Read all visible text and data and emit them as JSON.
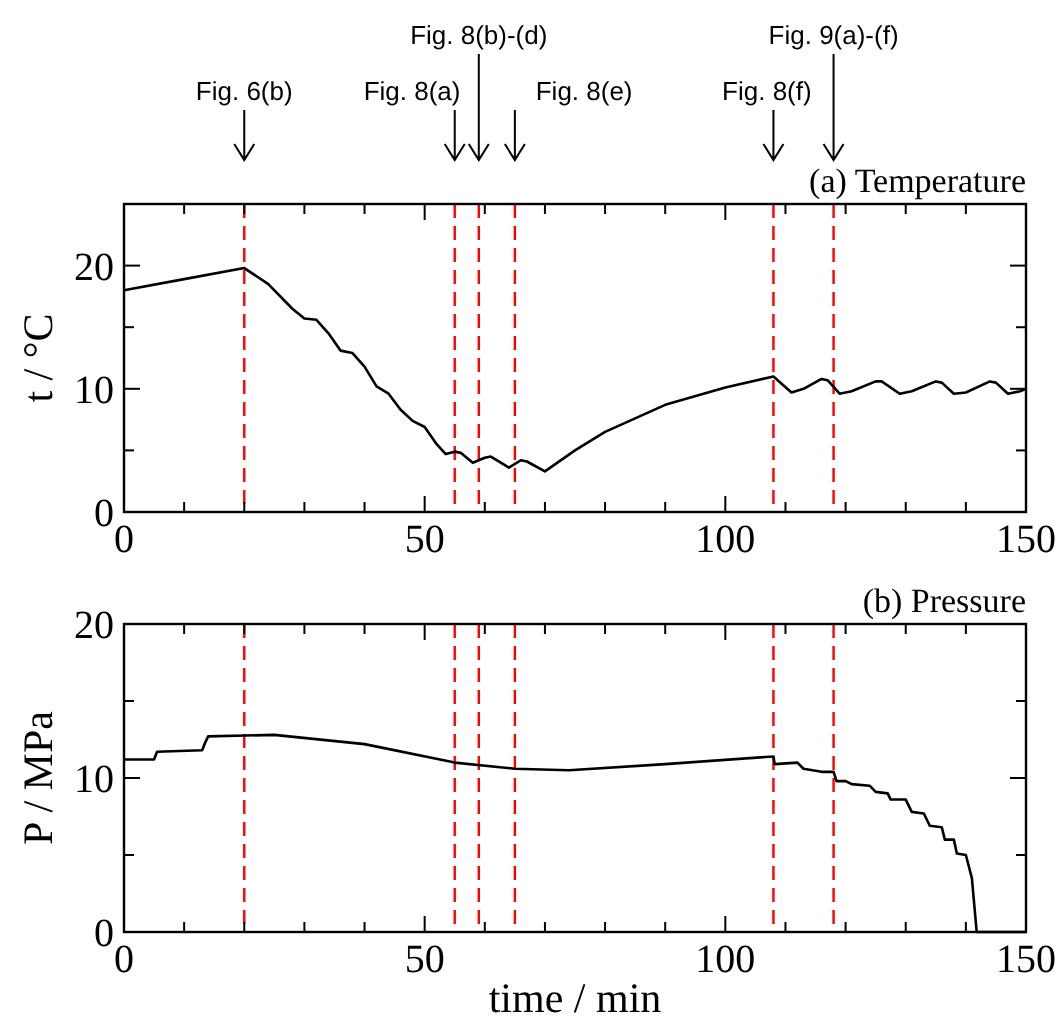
{
  "chart_data": [
    {
      "type": "line",
      "title": "(a) Temperature",
      "ylabel": "t / °C",
      "xlim": [
        0,
        150
      ],
      "ylim": [
        0,
        25
      ],
      "xticks": [
        0,
        {
          "value": 10,
          "label": null
        },
        {
          "value": 20,
          "label": null
        },
        {
          "value": 30,
          "label": null
        },
        {
          "value": 40,
          "label": null
        },
        50,
        {
          "value": 60,
          "label": null
        },
        {
          "value": 70,
          "label": null
        },
        {
          "value": 80,
          "label": null
        },
        {
          "value": 90,
          "label": null
        },
        100,
        {
          "value": 110,
          "label": null
        },
        {
          "value": 120,
          "label": null
        },
        {
          "value": 130,
          "label": null
        },
        {
          "value": 140,
          "label": null
        },
        150
      ],
      "yticks": [
        0,
        {
          "value": 5,
          "label": null
        },
        10,
        {
          "value": 15,
          "label": null
        },
        20,
        {
          "value": 25,
          "label": null
        }
      ],
      "grid": false,
      "line_style": "solid",
      "series": [
        {
          "color": "#000000",
          "x": [
            0,
            10,
            20,
            24,
            28,
            30,
            32,
            34,
            36,
            38,
            40,
            42,
            44,
            46,
            48,
            50,
            52,
            53.5,
            55,
            56,
            58,
            60,
            61,
            63,
            64,
            66,
            67,
            70,
            75,
            80,
            90,
            100,
            108,
            111,
            113,
            116,
            117,
            119,
            121,
            125,
            126,
            129,
            131,
            135,
            136,
            138,
            140,
            144,
            145,
            147,
            149,
            150
          ],
          "values": [
            18,
            18.9,
            19.8,
            18.5,
            16.5,
            15.7,
            15.6,
            14.5,
            13.1,
            12.9,
            11.8,
            10.2,
            9.6,
            8.3,
            7.4,
            6.9,
            5.5,
            4.7,
            4.9,
            4.8,
            4.0,
            4.4,
            4.5,
            3.9,
            3.6,
            4.2,
            4.1,
            3.3,
            5,
            6.5,
            8.7,
            10.1,
            11,
            9.7,
            10,
            10.8,
            10.7,
            9.6,
            9.8,
            10.6,
            10.6,
            9.6,
            9.8,
            10.6,
            10.5,
            9.6,
            9.7,
            10.6,
            10.5,
            9.6,
            9.8,
            10
          ]
        }
      ],
      "annotations": [
        "Fig. 6(b)",
        "Fig. 8(a)",
        "Fig. 8(b)-(d)",
        "Fig. 8(e)",
        "Fig. 8(f)",
        "Fig. 9(a)-(f)"
      ],
      "ref_lines": [
        {
          "axis": "x",
          "value": 20,
          "color": "#ff0000",
          "line_style": "dashed"
        },
        {
          "axis": "x",
          "value": 55,
          "color": "#ff0000",
          "line_style": "dashed"
        },
        {
          "axis": "x",
          "value": 59,
          "color": "#ff0000",
          "line_style": "dashed"
        },
        {
          "axis": "x",
          "value": 65,
          "color": "#ff0000",
          "line_style": "dashed"
        },
        {
          "axis": "x",
          "value": 108,
          "color": "#ff0000",
          "line_style": "dashed"
        },
        {
          "axis": "x",
          "value": 118,
          "color": "#ff0000",
          "line_style": "dashed"
        }
      ]
    },
    {
      "type": "line",
      "title": "(b) Pressure",
      "xlabel": "time / min",
      "ylabel": "P / MPa",
      "xlim": [
        0,
        150
      ],
      "ylim": [
        0,
        20
      ],
      "xticks": [
        0,
        {
          "value": 10,
          "label": null
        },
        {
          "value": 20,
          "label": null
        },
        {
          "value": 30,
          "label": null
        },
        {
          "value": 40,
          "label": null
        },
        50,
        {
          "value": 60,
          "label": null
        },
        {
          "value": 70,
          "label": null
        },
        {
          "value": 80,
          "label": null
        },
        {
          "value": 90,
          "label": null
        },
        100,
        {
          "value": 110,
          "label": null
        },
        {
          "value": 120,
          "label": null
        },
        {
          "value": 130,
          "label": null
        },
        {
          "value": 140,
          "label": null
        },
        150
      ],
      "yticks": [
        0,
        {
          "value": 5,
          "label": null
        },
        10,
        {
          "value": 15,
          "label": null
        },
        20
      ],
      "grid": false,
      "line_style": "solid",
      "series": [
        {
          "color": "#000000",
          "x": [
            0,
            5,
            5.5,
            13,
            13.5,
            14,
            25,
            40,
            55,
            65,
            74,
            90,
            108,
            108.2,
            112,
            113,
            116,
            118,
            118.5,
            120,
            121,
            124,
            125,
            127,
            127.5,
            130,
            131,
            133,
            134,
            136,
            136.5,
            138,
            138.5,
            140,
            141,
            141.8,
            150
          ],
          "values": [
            11.2,
            11.2,
            11.7,
            11.8,
            12.3,
            12.7,
            12.8,
            12.2,
            11,
            10.6,
            10.5,
            10.9,
            11.4,
            10.9,
            11,
            10.6,
            10.4,
            10.4,
            9.8,
            9.8,
            9.6,
            9.5,
            9.1,
            9,
            8.6,
            8.6,
            7.8,
            7.7,
            6.9,
            6.8,
            6,
            6,
            5.1,
            5,
            3.5,
            0,
            0
          ]
        }
      ],
      "ref_lines": [
        {
          "axis": "x",
          "value": 20,
          "color": "#ff0000",
          "line_style": "dashed"
        },
        {
          "axis": "x",
          "value": 55,
          "color": "#ff0000",
          "line_style": "dashed"
        },
        {
          "axis": "x",
          "value": 59,
          "color": "#ff0000",
          "line_style": "dashed"
        },
        {
          "axis": "x",
          "value": 65,
          "color": "#ff0000",
          "line_style": "dashed"
        },
        {
          "axis": "x",
          "value": 108,
          "color": "#ff0000",
          "line_style": "dashed"
        },
        {
          "axis": "x",
          "value": 118,
          "color": "#ff0000",
          "line_style": "dashed"
        }
      ]
    }
  ]
}
